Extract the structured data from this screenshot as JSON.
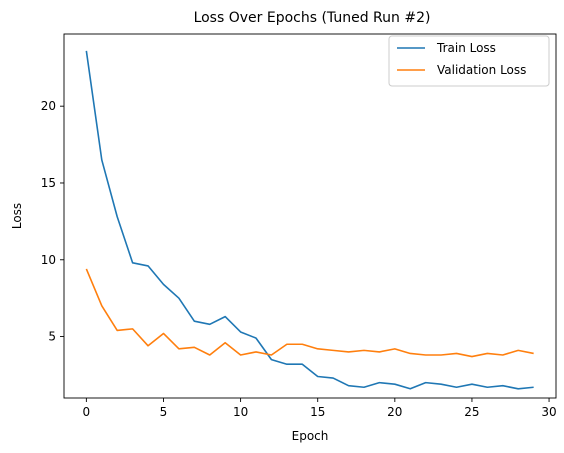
{
  "chart_data": {
    "type": "line",
    "title": "Loss Over Epochs (Tuned Run #2)",
    "xlabel": "Epoch",
    "ylabel": "Loss",
    "xlim": [
      -1.45,
      30.45
    ],
    "ylim": [
      1.0,
      24.7
    ],
    "xticks": [
      0,
      5,
      10,
      15,
      20,
      25,
      30
    ],
    "yticks": [
      5,
      10,
      15,
      20
    ],
    "grid": false,
    "legend_position": "top-right",
    "x": [
      0,
      1,
      2,
      3,
      4,
      5,
      6,
      7,
      8,
      9,
      10,
      11,
      12,
      13,
      14,
      15,
      16,
      17,
      18,
      19,
      20,
      21,
      22,
      23,
      24,
      25,
      26,
      27,
      28,
      29
    ],
    "series": [
      {
        "name": "Train Loss",
        "color": "#1f77b4",
        "values": [
          23.6,
          16.5,
          12.8,
          9.8,
          9.6,
          8.4,
          7.5,
          6.0,
          5.8,
          6.3,
          5.3,
          4.9,
          3.5,
          3.2,
          3.2,
          2.4,
          2.3,
          1.8,
          1.7,
          2.0,
          1.9,
          1.6,
          2.0,
          1.9,
          1.7,
          1.9,
          1.7,
          1.8,
          1.6,
          1.7
        ]
      },
      {
        "name": "Validation Loss",
        "color": "#ff7f0e",
        "values": [
          9.4,
          7.0,
          5.4,
          5.5,
          4.4,
          5.2,
          4.2,
          4.3,
          3.8,
          4.6,
          3.8,
          4.0,
          3.8,
          4.5,
          4.5,
          4.2,
          4.1,
          4.0,
          4.1,
          4.0,
          4.2,
          3.9,
          3.8,
          3.8,
          3.9,
          3.7,
          3.9,
          3.8,
          4.1,
          3.9
        ]
      }
    ]
  }
}
